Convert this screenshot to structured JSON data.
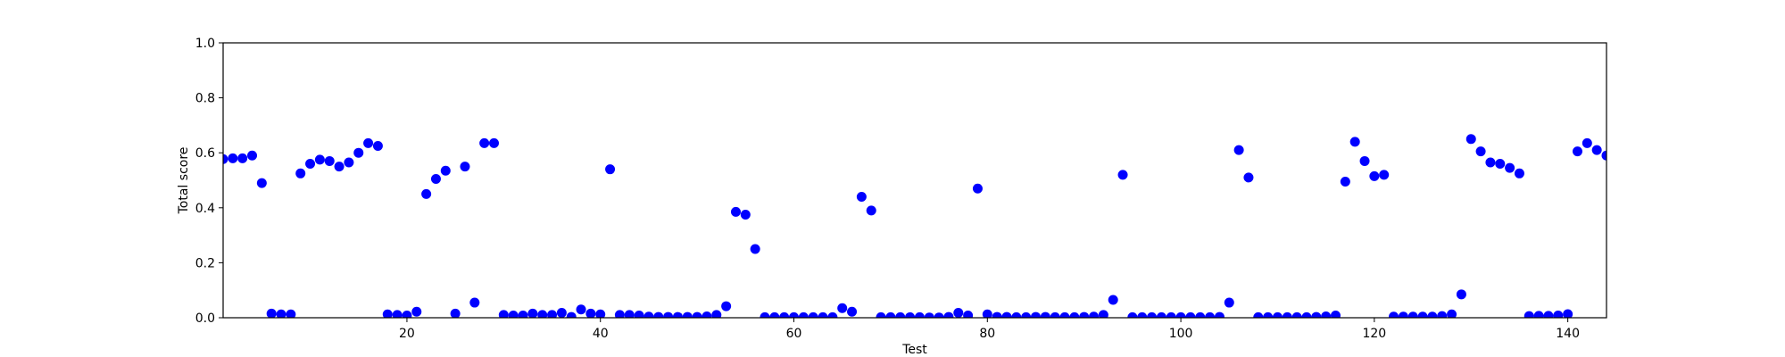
{
  "chart_data": {
    "type": "scatter",
    "x_label": "Test",
    "y_label": "Total score",
    "color": "#0000ff",
    "xlim": [
      1,
      144
    ],
    "ylim": [
      0,
      1
    ],
    "xticks": [
      20,
      40,
      60,
      80,
      100,
      120,
      140
    ],
    "yticks": [
      {
        "value": 0,
        "label": "0.0"
      },
      0.2,
      0.4,
      0.6,
      0.8,
      {
        "value": 1,
        "label": "1.0"
      }
    ],
    "grid": false,
    "x": [
      1,
      2,
      3,
      4,
      5,
      6,
      7,
      8,
      9,
      10,
      11,
      12,
      13,
      14,
      15,
      16,
      17,
      18,
      19,
      20,
      21,
      22,
      23,
      24,
      25,
      26,
      27,
      28,
      29,
      30,
      31,
      32,
      33,
      34,
      35,
      36,
      37,
      38,
      39,
      40,
      41,
      42,
      43,
      44,
      45,
      46,
      47,
      48,
      49,
      50,
      51,
      52,
      53,
      54,
      55,
      56,
      57,
      58,
      59,
      60,
      61,
      62,
      63,
      64,
      65,
      66,
      67,
      68,
      69,
      70,
      71,
      72,
      73,
      74,
      75,
      76,
      77,
      78,
      79,
      80,
      81,
      82,
      83,
      84,
      85,
      86,
      87,
      88,
      89,
      90,
      91,
      92,
      93,
      94,
      95,
      96,
      97,
      98,
      99,
      100,
      101,
      102,
      103,
      104,
      105,
      106,
      107,
      108,
      109,
      110,
      111,
      112,
      113,
      114,
      115,
      116,
      117,
      118,
      119,
      120,
      121,
      122,
      123,
      124,
      125,
      126,
      127,
      128,
      129,
      130,
      131,
      132,
      133,
      134,
      135,
      136,
      137,
      138,
      139,
      140,
      141,
      142,
      143,
      144
    ],
    "values": [
      0.577,
      0.58,
      0.58,
      0.59,
      0.49,
      0.015,
      0.012,
      0.012,
      0.525,
      0.56,
      0.575,
      0.57,
      0.55,
      0.565,
      0.6,
      0.635,
      0.625,
      0.012,
      0.01,
      0.008,
      0.022,
      0.45,
      0.505,
      0.535,
      0.015,
      0.55,
      0.055,
      0.635,
      0.635,
      0.01,
      0.008,
      0.008,
      0.015,
      0.01,
      0.01,
      0.018,
      0.003,
      0.03,
      0.015,
      0.012,
      0.54,
      0.01,
      0.01,
      0.008,
      0.004,
      0.003,
      0.003,
      0.003,
      0.003,
      0.003,
      0.005,
      0.01,
      0.042,
      0.385,
      0.375,
      0.25,
      0.002,
      0.002,
      0.002,
      0.002,
      0.002,
      0.002,
      0.002,
      0.002,
      0.035,
      0.022,
      0.44,
      0.39,
      0.002,
      0.002,
      0.002,
      0.002,
      0.002,
      0.001,
      0.001,
      0.003,
      0.018,
      0.008,
      0.47,
      0.012,
      0.003,
      0.003,
      0.002,
      0.002,
      0.003,
      0.003,
      0.002,
      0.002,
      0.002,
      0.003,
      0.004,
      0.01,
      0.065,
      0.52,
      0.002,
      0.002,
      0.002,
      0.002,
      0.002,
      0.002,
      0.002,
      0.002,
      0.002,
      0.003,
      0.055,
      0.61,
      0.51,
      0.002,
      0.002,
      0.002,
      0.002,
      0.002,
      0.002,
      0.003,
      0.005,
      0.008,
      0.495,
      0.64,
      0.57,
      0.515,
      0.52,
      0.004,
      0.004,
      0.004,
      0.004,
      0.004,
      0.006,
      0.012,
      0.085,
      0.65,
      0.605,
      0.565,
      0.56,
      0.545,
      0.525,
      0.006,
      0.007,
      0.007,
      0.008,
      0.013,
      0.605,
      0.635,
      0.61,
      0.59
    ]
  }
}
